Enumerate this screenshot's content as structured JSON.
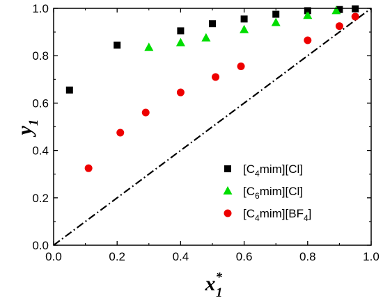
{
  "chart_data": {
    "type": "scatter",
    "xlabel": {
      "main": "x",
      "sup": "*",
      "sub": "1"
    },
    "ylabel": {
      "main": "y",
      "sub": "1"
    },
    "xlim": [
      0.0,
      1.0
    ],
    "ylim": [
      0.0,
      1.0
    ],
    "xticks": [
      "0.0",
      "0.2",
      "0.4",
      "0.6",
      "0.8",
      "1.0"
    ],
    "yticks": [
      "0.0",
      "0.2",
      "0.4",
      "0.6",
      "0.8",
      "1.0"
    ],
    "grid": false,
    "legend_position": "bottom-right",
    "reference_line": {
      "style": "dash-dot",
      "color": "#000000",
      "from": [
        0,
        0
      ],
      "to": [
        1,
        1
      ]
    },
    "series": [
      {
        "legend": {
          "pre": "[C",
          "sub": "4",
          "post": "mim][Cl]"
        },
        "marker": "square",
        "color": "#000000",
        "points": [
          [
            0.05,
            0.655
          ],
          [
            0.2,
            0.845
          ],
          [
            0.4,
            0.905
          ],
          [
            0.5,
            0.935
          ],
          [
            0.6,
            0.955
          ],
          [
            0.7,
            0.975
          ],
          [
            0.8,
            0.99
          ],
          [
            0.9,
            0.995
          ],
          [
            0.95,
            0.998
          ]
        ]
      },
      {
        "legend": {
          "pre": "[C",
          "sub": "6",
          "post": "mim][Cl]"
        },
        "marker": "triangle",
        "color": "#00dd00",
        "points": [
          [
            0.3,
            0.835
          ],
          [
            0.4,
            0.855
          ],
          [
            0.48,
            0.875
          ],
          [
            0.6,
            0.91
          ],
          [
            0.7,
            0.94
          ],
          [
            0.8,
            0.97
          ],
          [
            0.89,
            0.99
          ]
        ]
      },
      {
        "legend": {
          "pre": "[C",
          "sub": "4",
          "post": "mim][BF",
          "sub2": "4",
          "post2": "]"
        },
        "marker": "circle",
        "color": "#ee0000",
        "points": [
          [
            0.11,
            0.325
          ],
          [
            0.21,
            0.475
          ],
          [
            0.29,
            0.56
          ],
          [
            0.4,
            0.645
          ],
          [
            0.51,
            0.71
          ],
          [
            0.59,
            0.755
          ],
          [
            0.8,
            0.865
          ],
          [
            0.9,
            0.925
          ],
          [
            0.95,
            0.965
          ]
        ]
      }
    ]
  }
}
